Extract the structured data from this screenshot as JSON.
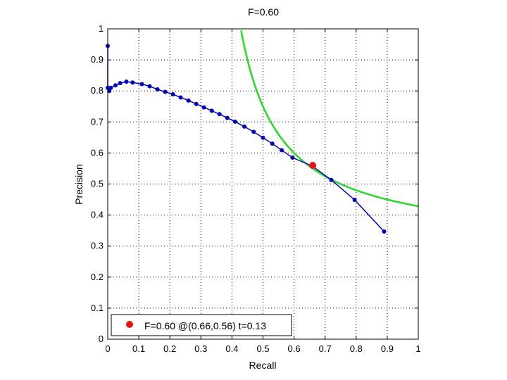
{
  "chart_data": {
    "type": "line",
    "title": "F=0.60",
    "xlabel": "Recall",
    "ylabel": "Precision",
    "xlim": [
      0,
      1
    ],
    "ylim": [
      0,
      1
    ],
    "grid": true,
    "legend_position": "bottom-left",
    "x_ticks": [
      "0",
      "0.1",
      "0.2",
      "0.3",
      "0.4",
      "0.5",
      "0.6",
      "0.7",
      "0.8",
      "0.9",
      "1"
    ],
    "y_ticks": [
      "0",
      "0.1",
      "0.2",
      "0.3",
      "0.4",
      "0.5",
      "0.6",
      "0.7",
      "0.8",
      "0.9",
      "1"
    ],
    "series": [
      {
        "color": "#0000cc",
        "x": [
          0.0,
          0.0,
          0.005,
          0.01,
          0.025,
          0.04,
          0.06,
          0.08,
          0.11,
          0.135,
          0.16,
          0.185,
          0.21,
          0.235,
          0.26,
          0.285,
          0.31,
          0.335,
          0.36,
          0.385,
          0.41,
          0.44,
          0.47,
          0.5,
          0.53,
          0.56,
          0.595,
          0.66,
          0.72,
          0.795,
          0.89
        ],
        "y": [
          0.945,
          0.81,
          0.8,
          0.81,
          0.818,
          0.825,
          0.83,
          0.827,
          0.822,
          0.815,
          0.805,
          0.797,
          0.789,
          0.779,
          0.769,
          0.758,
          0.747,
          0.736,
          0.725,
          0.713,
          0.701,
          0.685,
          0.668,
          0.649,
          0.63,
          0.609,
          0.585,
          0.557,
          0.513,
          0.449,
          0.347
        ]
      },
      {
        "color": "#22dd22",
        "kind": "iso-f",
        "f": 0.6
      }
    ],
    "highlight_point": {
      "x": 0.66,
      "y": 0.56,
      "color": "#ee1111"
    },
    "legend": {
      "label": "F=0.60 @(0.66,0.56) t=0.13"
    }
  }
}
